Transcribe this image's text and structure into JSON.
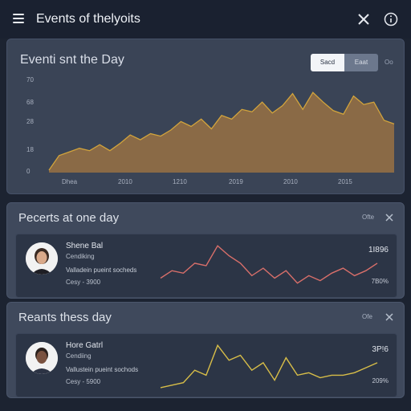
{
  "header": {
    "title": "Events of thelyoits",
    "menu_icon": "hamburger-menu-icon",
    "close_icon": "close-icon",
    "info_icon": "info-icon"
  },
  "main_card": {
    "title": "Eventi snt the Day",
    "segments": [
      "Sacd",
      "Eaat"
    ],
    "segment_extra": "Oo"
  },
  "chart_data": {
    "type": "area",
    "title": "Eventi snt the Day",
    "ytick_labels": [
      "70",
      "68",
      "28",
      "18",
      "0"
    ],
    "xtick_labels": [
      "Dhea",
      "2010",
      "1210",
      "2019",
      "2010",
      "2015"
    ],
    "ylim": [
      0,
      70
    ],
    "x": [
      0,
      1,
      2,
      3,
      4,
      5,
      6,
      7,
      8,
      9,
      10,
      11,
      12,
      13,
      14,
      15,
      16,
      17,
      18,
      19,
      20,
      21,
      22,
      23,
      24,
      25,
      26,
      27,
      28,
      29,
      30,
      31,
      32,
      33,
      34
    ],
    "values": [
      2,
      14,
      17,
      20,
      18,
      23,
      18,
      24,
      31,
      27,
      32,
      30,
      35,
      42,
      38,
      44,
      36,
      47,
      44,
      52,
      50,
      58,
      49,
      55,
      65,
      52,
      66,
      58,
      51,
      48,
      63,
      56,
      58,
      43,
      40
    ],
    "grid": false,
    "legend": "none",
    "fill_color": "#8a6a46",
    "line_color": "#d2a43c"
  },
  "panels": [
    {
      "title": "Pecerts at one day",
      "action": "Ofte",
      "row": {
        "name": "Shene Bal",
        "sub": "Cendiking",
        "desc": "Valladein pueint socheds",
        "meta": "Cesy - 3900",
        "value_top": "1I896",
        "value_bottom": "7B0%",
        "spark_color": "#d96f6a",
        "spark": [
          0.25,
          0.4,
          0.35,
          0.55,
          0.5,
          0.9,
          0.7,
          0.55,
          0.3,
          0.45,
          0.25,
          0.4,
          0.15,
          0.3,
          0.2,
          0.35,
          0.45,
          0.3,
          0.4,
          0.55
        ]
      }
    },
    {
      "title": "Reants thess day",
      "action": "Ofe",
      "row": {
        "name": "Hore Gatrl",
        "sub": "Cendiing",
        "desc": "Vallustein pueint sochods",
        "meta": "Cesy - 5900",
        "value_top": "3P!6",
        "value_bottom": "209%",
        "spark_color": "#d7bd48",
        "spark": [
          0.05,
          0.1,
          0.15,
          0.4,
          0.3,
          0.9,
          0.6,
          0.7,
          0.4,
          0.55,
          0.2,
          0.65,
          0.3,
          0.35,
          0.25,
          0.3,
          0.3,
          0.35,
          0.45,
          0.55
        ]
      }
    }
  ]
}
